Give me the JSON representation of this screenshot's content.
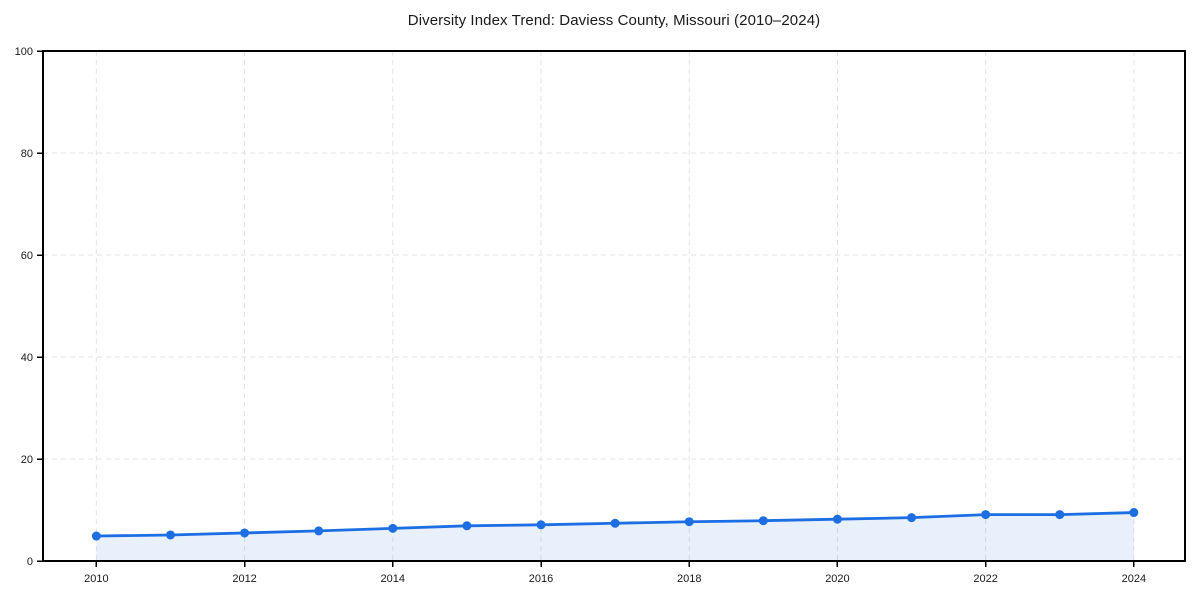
{
  "chart_data": {
    "type": "line",
    "title": "Diversity Index Trend: Daviess County, Missouri (2010–2024)",
    "x": [
      2010,
      2011,
      2012,
      2013,
      2014,
      2015,
      2016,
      2017,
      2018,
      2019,
      2020,
      2021,
      2022,
      2023,
      2024
    ],
    "series": [
      {
        "name": "Diversity Index",
        "values": [
          4.9,
          5.1,
          5.5,
          5.9,
          6.4,
          6.9,
          7.1,
          7.4,
          7.7,
          7.9,
          8.2,
          8.5,
          9.1,
          9.1,
          9.5
        ]
      }
    ],
    "xlabel": "",
    "ylabel": "",
    "xlim": [
      2009.28,
      2024.69
    ],
    "ylim": [
      0,
      100
    ],
    "x_ticks": [
      2010,
      2012,
      2014,
      2016,
      2018,
      2020,
      2022,
      2024
    ],
    "x_tick_labels": [
      "2010",
      "2012",
      "2014",
      "2016",
      "2018",
      "2020",
      "2022",
      "2024"
    ],
    "y_ticks": [
      0,
      20,
      40,
      60,
      80,
      100
    ],
    "y_tick_labels": [
      "0",
      "20",
      "40",
      "60",
      "80",
      "100"
    ],
    "grid": "dashed",
    "legend_position": "none",
    "area_fill": true,
    "marker": "circle",
    "colors": {
      "line": "#1d6ee3",
      "marker": "#1d6ee3",
      "area": "rgba(29, 110, 227, 0.10)",
      "gridline": "#e3e3e3",
      "spine": "#000000",
      "tick_text": "#1a1a1a",
      "background": "#ffffff"
    }
  }
}
